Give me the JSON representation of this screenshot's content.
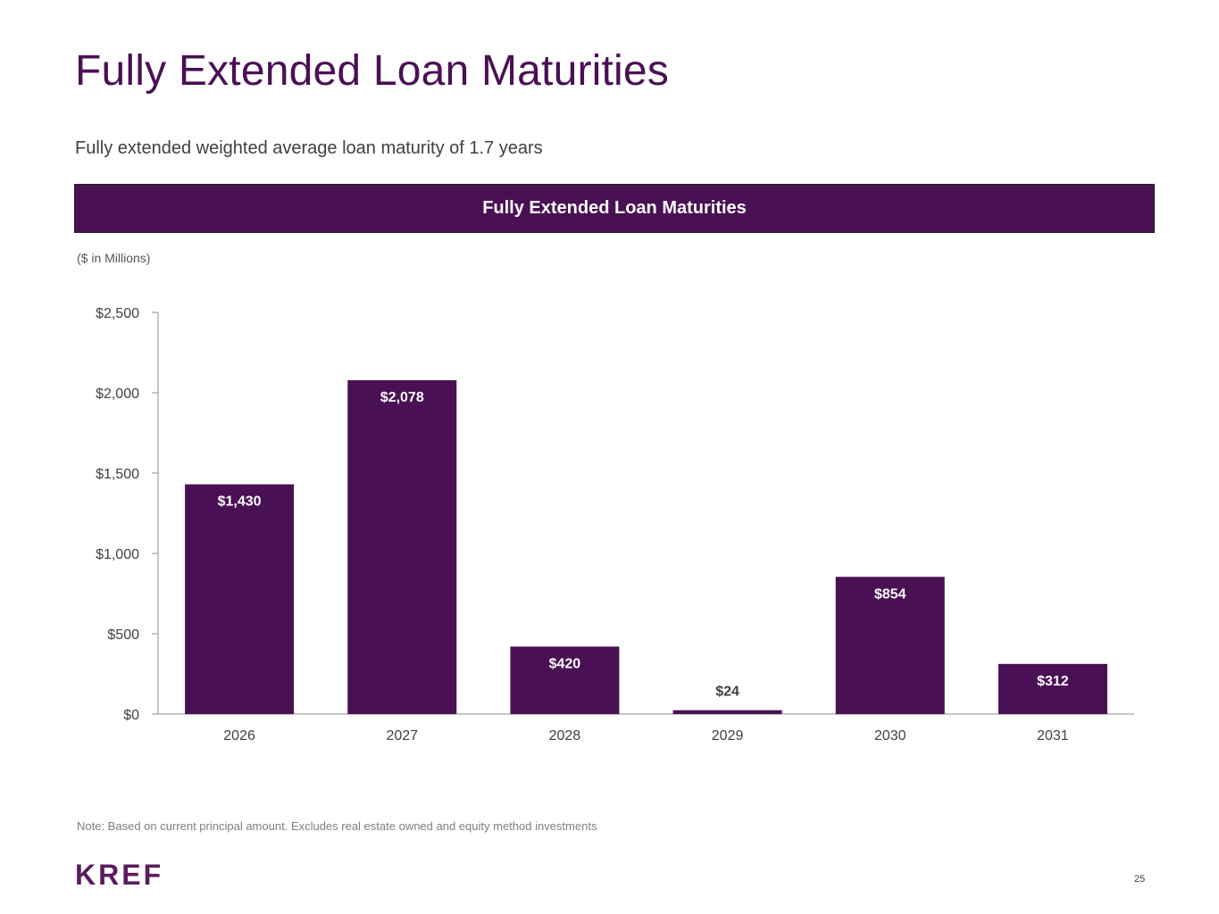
{
  "page": {
    "title": "Fully Extended Loan Maturities",
    "subtitle": "Fully extended weighted average loan maturity of 1.7 years",
    "banner": "Fully Extended Loan Maturities",
    "units": "($ in Millions)",
    "note": "Note: Based on current principal amount. Excludes real estate owned and equity method investments",
    "logo_text": "KREF",
    "page_number": "25"
  },
  "colors": {
    "brand_purple": "#4a1054",
    "logo_purple": "#5b1b5e",
    "axis_text": "#404040",
    "bar_label_dark": "#404040"
  },
  "chart_data": {
    "type": "bar",
    "categories": [
      "2026",
      "2027",
      "2028",
      "2029",
      "2030",
      "2031"
    ],
    "values": [
      1430,
      2078,
      420,
      24,
      854,
      312
    ],
    "data_labels": [
      "$1,430",
      "$2,078",
      "$420",
      "$24",
      "$854",
      "$312"
    ],
    "y_ticks": [
      0,
      500,
      1000,
      1500,
      2000,
      2500
    ],
    "y_tick_labels": [
      "$0",
      "$500",
      "$1,000",
      "$1,500",
      "$2,000",
      "$2,500"
    ],
    "ylim": [
      0,
      2500
    ],
    "grid": false,
    "legend": "none"
  }
}
